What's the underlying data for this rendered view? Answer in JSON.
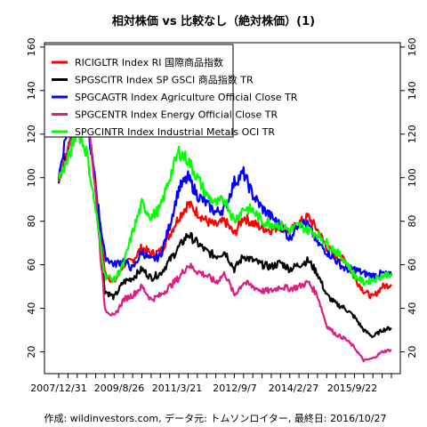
{
  "chart_data": {
    "type": "line",
    "title": "相対株価 vs 比較なし（絶対株価）(1)",
    "xlabel": "",
    "ylabel": "",
    "ylim": [
      10,
      162
    ],
    "x_tick_labels": [
      "2007/12/31",
      "2009/8/26",
      "2011/3/21",
      "2012/9/7",
      "2014/2/27",
      "2015/9/22"
    ],
    "y_ticks": [
      20,
      40,
      60,
      80,
      100,
      120,
      140,
      160
    ],
    "y_tick_labels": [
      "20",
      "40",
      "60",
      "80",
      "100",
      "120",
      "140",
      "160"
    ],
    "legend_position": "top-left",
    "grid": false,
    "x": [
      "2007/12/31",
      "2008/3",
      "2008/6",
      "2008/7",
      "2008/9",
      "2008/12",
      "2009/3",
      "2009/6",
      "2009/8/26",
      "2009/12",
      "2010/3",
      "2010/6",
      "2010/9",
      "2010/12",
      "2011/3/21",
      "2011/6",
      "2011/9",
      "2011/12",
      "2012/3",
      "2012/6",
      "2012/9/7",
      "2012/12",
      "2013/3",
      "2013/6",
      "2013/9",
      "2013/12",
      "2014/2/27",
      "2014/6",
      "2014/9",
      "2014/12",
      "2015/3",
      "2015/6",
      "2015/9/22",
      "2015/12",
      "2016/3",
      "2016/6",
      "2016/10/27"
    ],
    "series": [
      {
        "name": "RICIGLTR Index RI 国際商品指数",
        "color": "#ff0000",
        "values": [
          100,
          112,
          132,
          128,
          98,
          56,
          52,
          60,
          62,
          68,
          65,
          66,
          74,
          82,
          88,
          84,
          80,
          78,
          80,
          74,
          82,
          79,
          77,
          76,
          78,
          75,
          79,
          82,
          76,
          68,
          64,
          62,
          54,
          48,
          45,
          50,
          51
        ]
      },
      {
        "name": "SPGSCITR Index SP GSCI 商品指数 TR",
        "color": "#000000",
        "values": [
          100,
          115,
          138,
          130,
          95,
          48,
          45,
          52,
          54,
          58,
          54,
          56,
          62,
          68,
          74,
          70,
          66,
          64,
          66,
          58,
          64,
          62,
          60,
          59,
          61,
          58,
          60,
          62,
          56,
          46,
          42,
          40,
          36,
          30,
          27,
          30,
          31
        ]
      },
      {
        "name": "SPGCAGTR Index Agriculture Official Close TR",
        "color": "#0000ff",
        "values": [
          100,
          125,
          140,
          130,
          95,
          64,
          60,
          62,
          58,
          66,
          62,
          64,
          78,
          95,
          100,
          92,
          88,
          84,
          86,
          98,
          102,
          92,
          86,
          82,
          78,
          72,
          80,
          78,
          70,
          66,
          62,
          58,
          58,
          56,
          55,
          56,
          55
        ]
      },
      {
        "name": "SPGCENTR Index Energy Official Close TR",
        "color": "#e01b84",
        "values": [
          100,
          112,
          150,
          138,
          92,
          40,
          36,
          44,
          46,
          50,
          44,
          46,
          50,
          54,
          60,
          57,
          55,
          52,
          56,
          46,
          52,
          50,
          48,
          48,
          50,
          49,
          50,
          52,
          46,
          32,
          28,
          26,
          22,
          16,
          17,
          20,
          21
        ]
      },
      {
        "name": "SPGCINTR Index Industrial Metals OCI TR",
        "color": "#00ff00",
        "values": [
          100,
          108,
          122,
          112,
          85,
          55,
          53,
          60,
          75,
          88,
          82,
          86,
          100,
          112,
          108,
          100,
          92,
          88,
          90,
          80,
          86,
          85,
          80,
          79,
          78,
          76,
          78,
          76,
          74,
          70,
          66,
          62,
          55,
          52,
          53,
          55,
          56
        ]
      }
    ]
  },
  "footer": "作成: wildinvestors.com, データ元: トムソンロイター, 最終日: 2016/10/27"
}
